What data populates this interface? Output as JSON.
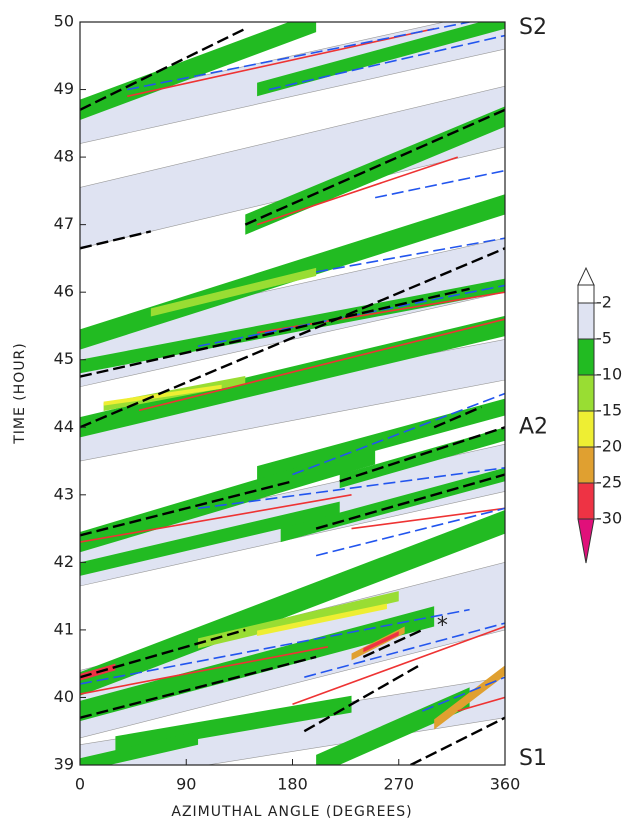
{
  "chart_data": {
    "type": "hovmoller",
    "x_label": "AZIMUTHAL ANGLE (DEGREES)",
    "y_label": "TIME (HOUR)",
    "xlim": [
      0,
      360
    ],
    "ylim": [
      39,
      50
    ],
    "xticks": [
      0,
      90,
      180,
      270,
      360
    ],
    "yticks": [
      39,
      40,
      41,
      42,
      43,
      44,
      45,
      46,
      47,
      48,
      49,
      50
    ],
    "colorbar": {
      "levels": [
        -2,
        -5,
        -10,
        -15,
        -20,
        -25,
        -30
      ],
      "colors": [
        "#ffffff",
        "#dfe3f2",
        "#22bb22",
        "#99dd33",
        "#eeee33",
        "#e0a030",
        "#ee3344",
        "#e0107a"
      ]
    },
    "bands": [
      {
        "x": [
          0,
          360
        ],
        "y": [
          48.5,
          49.9
        ],
        "dy": 0.6,
        "level": -2
      },
      {
        "x": [
          0,
          360
        ],
        "y": [
          47.1,
          48.6
        ],
        "dy": 0.9,
        "level": -2
      },
      {
        "x": [
          0,
          360
        ],
        "y": [
          45.0,
          46.4
        ],
        "dy": 0.8,
        "level": -2
      },
      {
        "x": [
          0,
          360
        ],
        "y": [
          43.8,
          45.0
        ],
        "dy": 0.6,
        "level": -2
      },
      {
        "x": [
          0,
          360
        ],
        "y": [
          42.0,
          43.4
        ],
        "dy": 0.7,
        "level": -2
      },
      {
        "x": [
          0,
          360
        ],
        "y": [
          39.9,
          41.5
        ],
        "dy": 1.0,
        "level": -2
      },
      {
        "x": [
          0,
          360
        ],
        "y": [
          39.0,
          40.0
        ],
        "dy": 0.6,
        "level": -2
      },
      {
        "x": [
          0,
          200
        ],
        "y": [
          48.7,
          50.0
        ],
        "dy": 0.3,
        "level": -5
      },
      {
        "x": [
          150,
          360
        ],
        "y": [
          49.0,
          50.0
        ],
        "dy": 0.2,
        "level": -5
      },
      {
        "x": [
          140,
          360
        ],
        "y": [
          47.0,
          48.6
        ],
        "dy": 0.3,
        "level": -5
      },
      {
        "x": [
          0,
          360
        ],
        "y": [
          45.3,
          47.3
        ],
        "dy": 0.3,
        "level": -5
      },
      {
        "x": [
          0,
          360
        ],
        "y": [
          44.9,
          46.1
        ],
        "dy": 0.2,
        "level": -5
      },
      {
        "x": [
          0,
          360
        ],
        "y": [
          44.0,
          45.5
        ],
        "dy": 0.3,
        "level": -5
      },
      {
        "x": [
          150,
          360
        ],
        "y": [
          43.3,
          44.3
        ],
        "dy": 0.25,
        "level": -5
      },
      {
        "x": [
          0,
          250
        ],
        "y": [
          42.3,
          43.6
        ],
        "dy": 0.3,
        "level": -5
      },
      {
        "x": [
          220,
          360
        ],
        "y": [
          43.2,
          43.9
        ],
        "dy": 0.2,
        "level": -5
      },
      {
        "x": [
          0,
          220
        ],
        "y": [
          41.9,
          42.8
        ],
        "dy": 0.2,
        "level": -5
      },
      {
        "x": [
          170,
          360
        ],
        "y": [
          42.4,
          43.3
        ],
        "dy": 0.2,
        "level": -5
      },
      {
        "x": [
          0,
          360
        ],
        "y": [
          40.2,
          42.6
        ],
        "dy": 0.35,
        "level": -5
      },
      {
        "x": [
          0,
          300
        ],
        "y": [
          39.8,
          41.2
        ],
        "dy": 0.3,
        "level": -5
      },
      {
        "x": [
          30,
          230
        ],
        "y": [
          39.3,
          39.9
        ],
        "dy": 0.25,
        "level": -5
      },
      {
        "x": [
          200,
          330
        ],
        "y": [
          39.0,
          40.0
        ],
        "dy": 0.3,
        "level": -5
      },
      {
        "x": [
          0,
          100
        ],
        "y": [
          39.0,
          39.4
        ],
        "dy": 0.2,
        "level": -5
      },
      {
        "x": [
          60,
          200
        ],
        "y": [
          45.7,
          46.3
        ],
        "dy": 0.12,
        "level": -10
      },
      {
        "x": [
          20,
          140
        ],
        "y": [
          44.3,
          44.7
        ],
        "dy": 0.12,
        "level": -10
      },
      {
        "x": [
          100,
          270
        ],
        "y": [
          40.8,
          41.5
        ],
        "dy": 0.15,
        "level": -10
      },
      {
        "x": [
          20,
          120
        ],
        "y": [
          44.35,
          44.6
        ],
        "dy": 0.06,
        "level": -15
      },
      {
        "x": [
          150,
          260
        ],
        "y": [
          40.95,
          41.35
        ],
        "dy": 0.08,
        "level": -15
      },
      {
        "x": [
          300,
          360
        ],
        "y": [
          39.6,
          40.4
        ],
        "dy": 0.15,
        "level": -20
      },
      {
        "x": [
          230,
          275
        ],
        "y": [
          40.6,
          41.0
        ],
        "dy": 0.1,
        "level": -20
      },
      {
        "x": [
          0,
          30
        ],
        "y": [
          40.3,
          40.45
        ],
        "dy": 0.1,
        "level": -25
      },
      {
        "x": [
          240,
          270
        ],
        "y": [
          40.7,
          40.95
        ],
        "dy": 0.06,
        "level": -25
      }
    ],
    "lines": [
      {
        "color": "#ee3333",
        "dash": false,
        "segments": [
          [
            40,
            48.9,
            300,
            49.9
          ],
          [
            150,
            47.0,
            320,
            48.0
          ],
          [
            150,
            45.4,
            360,
            46.0
          ],
          [
            50,
            44.25,
            360,
            45.6
          ],
          [
            0,
            42.3,
            230,
            43.0
          ],
          [
            230,
            42.5,
            360,
            42.8
          ],
          [
            0,
            40.05,
            210,
            40.75
          ],
          [
            180,
            39.9,
            360,
            41.05
          ],
          [
            320,
            39.8,
            360,
            40.0
          ]
        ]
      },
      {
        "color": "#2255ee",
        "dash": true,
        "segments": [
          [
            40,
            49.0,
            330,
            50.0
          ],
          [
            160,
            49.0,
            360,
            49.8
          ],
          [
            250,
            47.4,
            360,
            47.8
          ],
          [
            200,
            46.3,
            360,
            46.8
          ],
          [
            100,
            45.2,
            360,
            46.1
          ],
          [
            180,
            43.3,
            360,
            44.5
          ],
          [
            100,
            42.8,
            360,
            43.4
          ],
          [
            200,
            42.1,
            360,
            42.8
          ],
          [
            0,
            40.2,
            330,
            41.3
          ],
          [
            190,
            40.3,
            360,
            41.1
          ],
          [
            290,
            39.8,
            360,
            40.3
          ]
        ]
      },
      {
        "color": "#000000",
        "dash": true,
        "segments": [
          [
            0,
            48.7,
            140,
            49.9
          ],
          [
            0,
            46.65,
            60,
            46.9
          ],
          [
            140,
            47.0,
            360,
            48.7
          ],
          [
            0,
            44.0,
            360,
            46.65
          ],
          [
            0,
            44.75,
            330,
            46.05
          ],
          [
            300,
            44.0,
            340,
            44.3
          ],
          [
            0,
            42.4,
            180,
            43.2
          ],
          [
            200,
            42.5,
            360,
            43.3
          ],
          [
            220,
            43.2,
            360,
            44.0
          ],
          [
            0,
            40.3,
            140,
            41.0
          ],
          [
            0,
            39.7,
            200,
            40.6
          ],
          [
            190,
            39.5,
            290,
            40.5
          ],
          [
            240,
            40.6,
            290,
            41.0
          ],
          [
            280,
            39.0,
            360,
            39.7
          ]
        ]
      }
    ],
    "annotations": [
      {
        "text": "S2",
        "y": 50
      },
      {
        "text": "A2",
        "y": 44
      },
      {
        "text": "S1",
        "y": 39
      },
      {
        "text": "*",
        "x": 307,
        "y": 41.05
      }
    ]
  }
}
